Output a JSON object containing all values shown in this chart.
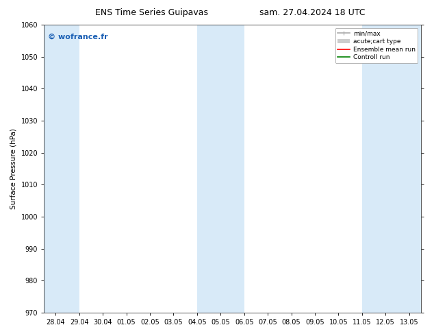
{
  "title_left": "ENS Time Series Guipavas",
  "title_right": "sam. 27.04.2024 18 UTC",
  "ylabel": "Surface Pressure (hPa)",
  "ylim": [
    970,
    1060
  ],
  "yticks": [
    970,
    980,
    990,
    1000,
    1010,
    1020,
    1030,
    1040,
    1050,
    1060
  ],
  "xtick_labels": [
    "28.04",
    "29.04",
    "30.04",
    "01.05",
    "02.05",
    "03.05",
    "04.05",
    "05.05",
    "06.05",
    "07.05",
    "08.05",
    "09.05",
    "10.05",
    "11.05",
    "12.05",
    "13.05"
  ],
  "xtick_positions": [
    0,
    1,
    2,
    3,
    4,
    5,
    6,
    7,
    8,
    9,
    10,
    11,
    12,
    13,
    14,
    15
  ],
  "xlim": [
    -0.5,
    15.5
  ],
  "shaded_bands": [
    {
      "x_start": -0.5,
      "x_end": 1.0
    },
    {
      "x_start": 6.0,
      "x_end": 8.0
    },
    {
      "x_start": 13.0,
      "x_end": 15.5
    }
  ],
  "shaded_color": "#d8eaf8",
  "watermark_text": "© wofrance.fr",
  "watermark_color": "#1a5fb4",
  "legend_items": [
    {
      "label": "min/max",
      "color": "#aaaaaa",
      "lw": 1.2,
      "style": "errorbar"
    },
    {
      "label": "acute;cart type",
      "color": "#cccccc",
      "lw": 5,
      "style": "bar"
    },
    {
      "label": "Ensemble mean run",
      "color": "red",
      "lw": 1.2,
      "style": "line"
    },
    {
      "label": "Controll run",
      "color": "green",
      "lw": 1.2,
      "style": "line"
    }
  ],
  "bg_color": "white",
  "plot_bg_color": "white",
  "title_fontsize": 9,
  "legend_fontsize": 6.5,
  "axis_fontsize": 7,
  "ylabel_fontsize": 7.5,
  "watermark_fontsize": 8
}
